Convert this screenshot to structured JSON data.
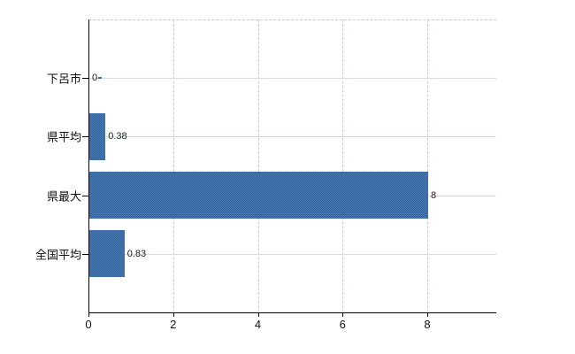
{
  "chart_data": {
    "type": "bar",
    "orientation": "horizontal",
    "title": "",
    "xlabel": "",
    "ylabel": "",
    "categories": [
      "下呂市",
      "県平均",
      "県最大",
      "全国平均"
    ],
    "values": [
      0,
      0.38,
      8,
      0.83
    ],
    "value_labels": [
      "0",
      "0.38",
      "8",
      "0.83"
    ],
    "x_tick_values": [
      0,
      2,
      4,
      6,
      8
    ],
    "x_tick_labels": [
      "0",
      "2",
      "4",
      "6",
      "8"
    ],
    "xlim": [
      0,
      9.6
    ],
    "grid": true,
    "legend": false,
    "colors": {
      "bar": "#4a78b0",
      "bar_dither": "#33649e",
      "h_gridline": "#d5dfd5",
      "v_gridline": "#d2c8ce",
      "plot_border": "#c7c7cd",
      "axis": "#000000",
      "text": "#111111"
    }
  }
}
